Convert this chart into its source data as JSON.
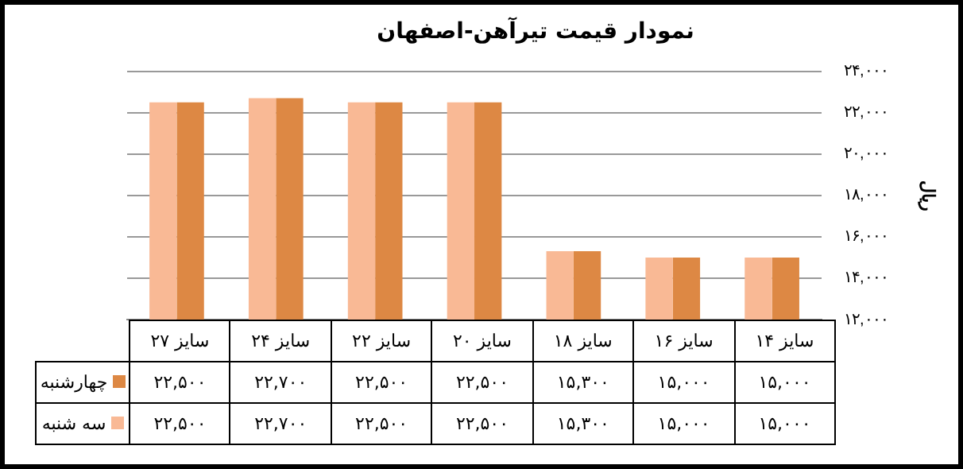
{
  "chart_data": {
    "type": "bar",
    "title": "نمودار قیمت تیرآهن-اصفهان",
    "ylabel": "ریال",
    "categories": [
      "سایز ۲۷",
      "سایز ۲۴",
      "سایز ۲۲",
      "سایز ۲۰",
      "سایز ۱۸",
      "سایز ۱۶",
      "سایز ۱۴"
    ],
    "series": [
      {
        "name": "چهارشنبه",
        "color": "#dd8844",
        "values": [
          22500,
          22700,
          22500,
          22500,
          15300,
          15000,
          15000
        ],
        "value_labels": [
          "۲۲,۵۰۰",
          "۲۲,۷۰۰",
          "۲۲,۵۰۰",
          "۲۲,۵۰۰",
          "۱۵,۳۰۰",
          "۱۵,۰۰۰",
          "۱۵,۰۰۰"
        ]
      },
      {
        "name": "سه شنبه",
        "color": "#f9b995",
        "values": [
          22500,
          22700,
          22500,
          22500,
          15300,
          15000,
          15000
        ],
        "value_labels": [
          "۲۲,۵۰۰",
          "۲۲,۷۰۰",
          "۲۲,۵۰۰",
          "۲۲,۵۰۰",
          "۱۵,۳۰۰",
          "۱۵,۰۰۰",
          "۱۵,۰۰۰"
        ]
      }
    ],
    "ylim": [
      12000,
      24000
    ],
    "yticks": [
      {
        "value": 12000,
        "label": "۱۲,۰۰۰"
      },
      {
        "value": 14000,
        "label": "۱۴,۰۰۰"
      },
      {
        "value": 16000,
        "label": "۱۶,۰۰۰"
      },
      {
        "value": 18000,
        "label": "۱۸,۰۰۰"
      },
      {
        "value": 20000,
        "label": "۲۰,۰۰۰"
      },
      {
        "value": 22000,
        "label": "۲۲,۰۰۰"
      },
      {
        "value": 24000,
        "label": "۲۴,۰۰۰"
      }
    ],
    "grid": "y",
    "legend": "bottom left"
  }
}
